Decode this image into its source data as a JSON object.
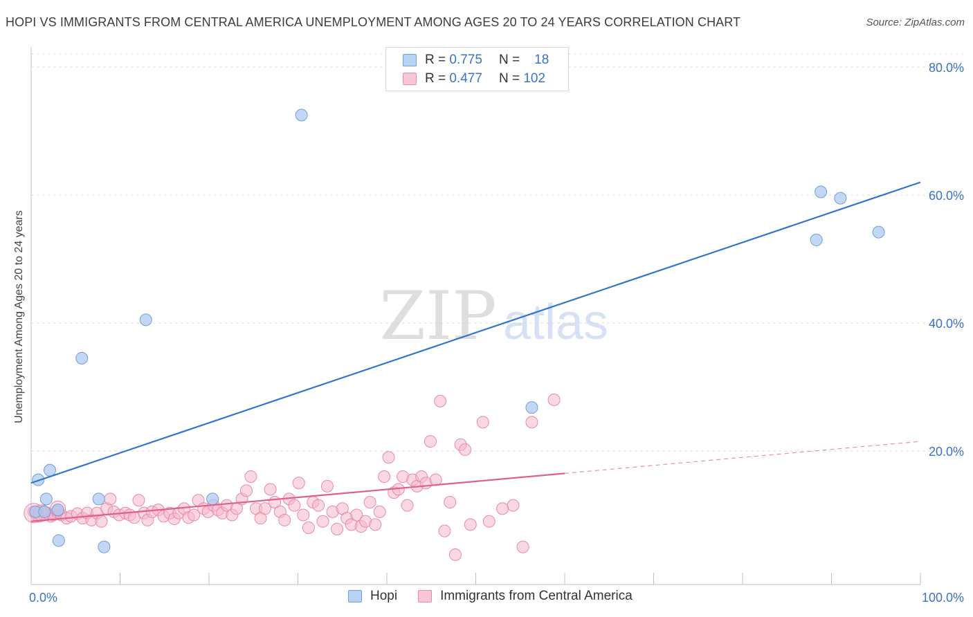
{
  "title": "HOPI VS IMMIGRANTS FROM CENTRAL AMERICA UNEMPLOYMENT AMONG AGES 20 TO 24 YEARS CORRELATION CHART",
  "source": "Source: ZipAtlas.com",
  "watermark": {
    "zip": "ZIP",
    "atlas": "atlas"
  },
  "legend": {
    "r_label": "R =",
    "n_label": "N =",
    "rows": [
      {
        "r": "0.775",
        "n": "18"
      },
      {
        "r": "0.477",
        "n": "102"
      }
    ]
  },
  "bottom_legend": [
    "Hopi",
    "Immigrants from Central America"
  ],
  "colors": {
    "hopi_fill": "#a9c8ef",
    "hopi_stroke": "#6f9fd8",
    "hopi_line": "#2e74d0",
    "imm_fill": "#f5b8cb",
    "imm_stroke": "#e88aa8",
    "imm_line": "#e0608c",
    "axis_text": "#3a72c8",
    "grid": "#dcdcdc"
  },
  "chart_data": {
    "type": "scatter",
    "title": "HOPI VS IMMIGRANTS FROM CENTRAL AMERICA UNEMPLOYMENT AMONG AGES 20 TO 24 YEARS CORRELATION CHART",
    "xlabel": "",
    "ylabel": "Unemployment Among Ages 20 to 24 years",
    "xlim": [
      0,
      100
    ],
    "ylim": [
      0,
      80
    ],
    "x_tick_labels": [
      "0.0%",
      "100.0%"
    ],
    "y_ticks": [
      20,
      40,
      60,
      80
    ],
    "y_tick_labels": [
      "20.0%",
      "40.0%",
      "60.0%",
      "80.0%"
    ],
    "grid": true,
    "series": [
      {
        "name": "Hopi",
        "r": 0.775,
        "n": 18,
        "points": [
          [
            0.5,
            10.5
          ],
          [
            0.8,
            15.5
          ],
          [
            1.5,
            10.5
          ],
          [
            1.7,
            12.5
          ],
          [
            2.1,
            17.0
          ],
          [
            3.0,
            10.8
          ],
          [
            3.1,
            6.0
          ],
          [
            5.7,
            34.5
          ],
          [
            7.6,
            12.5
          ],
          [
            8.2,
            5.0
          ],
          [
            12.9,
            40.5
          ],
          [
            20.4,
            12.5
          ],
          [
            30.4,
            72.5
          ],
          [
            56.3,
            26.8
          ],
          [
            88.3,
            53.0
          ],
          [
            88.8,
            60.5
          ],
          [
            91.0,
            59.5
          ],
          [
            95.3,
            54.2
          ]
        ],
        "trend": {
          "x": [
            0,
            100
          ],
          "y": [
            15.0,
            62.0
          ]
        }
      },
      {
        "name": "Immigrants from Central America",
        "r": 0.477,
        "n": 102,
        "points": [
          [
            0.3,
            10.5
          ],
          [
            0.6,
            10.0
          ],
          [
            0.9,
            9.8
          ],
          [
            1.2,
            10.5
          ],
          [
            1.5,
            10.0
          ],
          [
            1.8,
            10.3
          ],
          [
            2.2,
            9.8
          ],
          [
            2.5,
            10.0
          ],
          [
            2.9,
            10.5
          ],
          [
            3.4,
            10.0
          ],
          [
            4.0,
            9.5
          ],
          [
            4.5,
            9.8
          ],
          [
            5.2,
            10.2
          ],
          [
            5.8,
            9.5
          ],
          [
            6.3,
            10.3
          ],
          [
            6.8,
            9.2
          ],
          [
            7.4,
            10.3
          ],
          [
            7.9,
            9.0
          ],
          [
            8.5,
            11.0
          ],
          [
            8.9,
            12.5
          ],
          [
            9.3,
            10.5
          ],
          [
            9.9,
            10.0
          ],
          [
            10.6,
            10.3
          ],
          [
            11.1,
            10.0
          ],
          [
            11.6,
            9.6
          ],
          [
            12.1,
            12.3
          ],
          [
            12.7,
            10.3
          ],
          [
            13.1,
            9.2
          ],
          [
            13.6,
            10.5
          ],
          [
            14.3,
            10.8
          ],
          [
            14.9,
            9.8
          ],
          [
            15.6,
            10.3
          ],
          [
            16.1,
            9.4
          ],
          [
            16.6,
            10.3
          ],
          [
            17.2,
            11.0
          ],
          [
            17.7,
            9.6
          ],
          [
            18.3,
            10.0
          ],
          [
            18.8,
            12.3
          ],
          [
            19.4,
            11.0
          ],
          [
            19.9,
            10.5
          ],
          [
            20.5,
            11.5
          ],
          [
            21.0,
            10.8
          ],
          [
            21.5,
            10.3
          ],
          [
            22.0,
            11.5
          ],
          [
            22.6,
            10.0
          ],
          [
            23.1,
            11.0
          ],
          [
            23.7,
            12.5
          ],
          [
            24.2,
            13.8
          ],
          [
            24.7,
            16.0
          ],
          [
            25.3,
            11.0
          ],
          [
            25.8,
            9.5
          ],
          [
            26.3,
            11.0
          ],
          [
            26.9,
            14.0
          ],
          [
            27.4,
            12.0
          ],
          [
            28.0,
            10.5
          ],
          [
            28.5,
            9.2
          ],
          [
            29.0,
            12.5
          ],
          [
            29.6,
            11.5
          ],
          [
            30.1,
            15.0
          ],
          [
            30.6,
            10.0
          ],
          [
            31.2,
            8.0
          ],
          [
            31.7,
            12.0
          ],
          [
            32.3,
            11.5
          ],
          [
            32.8,
            9.0
          ],
          [
            33.3,
            14.5
          ],
          [
            33.9,
            10.5
          ],
          [
            34.4,
            7.8
          ],
          [
            35.0,
            11.0
          ],
          [
            35.5,
            9.5
          ],
          [
            36.0,
            8.5
          ],
          [
            36.6,
            10.0
          ],
          [
            37.1,
            8.2
          ],
          [
            37.6,
            9.0
          ],
          [
            38.1,
            12.0
          ],
          [
            38.7,
            8.5
          ],
          [
            39.2,
            10.5
          ],
          [
            39.7,
            16.0
          ],
          [
            40.2,
            19.0
          ],
          [
            40.8,
            13.5
          ],
          [
            41.3,
            14.0
          ],
          [
            41.8,
            16.0
          ],
          [
            42.3,
            11.5
          ],
          [
            42.9,
            15.5
          ],
          [
            43.4,
            14.5
          ],
          [
            43.9,
            16.0
          ],
          [
            44.4,
            15.0
          ],
          [
            44.9,
            21.5
          ],
          [
            45.5,
            15.5
          ],
          [
            46.0,
            27.8
          ],
          [
            46.5,
            7.5
          ],
          [
            47.1,
            12.0
          ],
          [
            47.7,
            3.8
          ],
          [
            48.3,
            21.0
          ],
          [
            48.8,
            20.2
          ],
          [
            49.4,
            8.5
          ],
          [
            50.8,
            24.5
          ],
          [
            54.2,
            11.5
          ],
          [
            55.3,
            5.0
          ],
          [
            56.3,
            24.5
          ],
          [
            58.8,
            28.0
          ],
          [
            51.5,
            9.0
          ],
          [
            53.0,
            11.0
          ]
        ],
        "trend": {
          "x": [
            0,
            60
          ],
          "y": [
            9.0,
            16.5
          ]
        },
        "trend_extension": {
          "x": [
            60,
            100
          ],
          "y": [
            16.5,
            21.5
          ]
        }
      }
    ]
  }
}
